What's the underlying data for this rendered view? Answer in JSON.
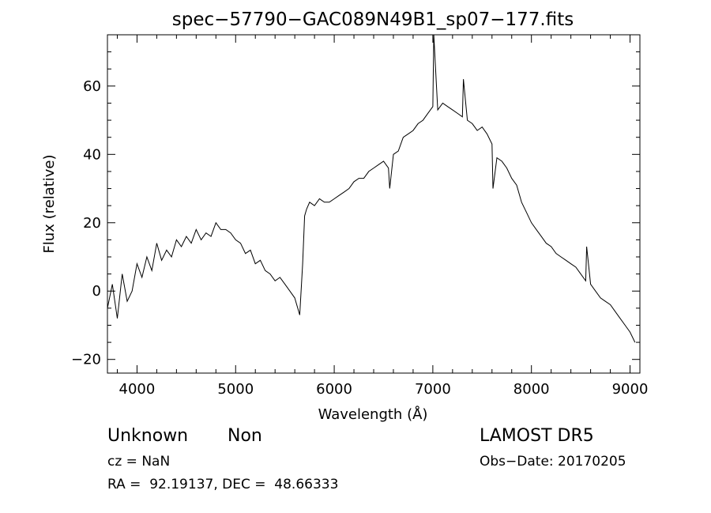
{
  "chart_data": {
    "type": "line",
    "title": "spec−57790−GAC089N49B1_sp07−177.fits",
    "xlabel": "Wavelength (Å)",
    "ylabel": "Flux (relative)",
    "xlim": [
      3700,
      9100
    ],
    "ylim": [
      -24,
      75
    ],
    "x_ticks": [
      4000,
      5000,
      6000,
      7000,
      8000,
      9000
    ],
    "x_tick_labels": [
      "4000",
      "5000",
      "6000",
      "7000",
      "8000",
      "9000"
    ],
    "y_ticks": [
      -20,
      0,
      20,
      40,
      60
    ],
    "y_tick_labels": [
      "−20",
      "0",
      "20",
      "40",
      "60"
    ],
    "grid": false,
    "series": [
      {
        "x": [
          3700,
          3750,
          3800,
          3850,
          3900,
          3950,
          4000,
          4050,
          4100,
          4150,
          4200,
          4250,
          4300,
          4350,
          4400,
          4450,
          4500,
          4550,
          4600,
          4650,
          4700,
          4750,
          4800,
          4850,
          4900,
          4950,
          5000,
          5050,
          5100,
          5150,
          5200,
          5250,
          5300,
          5350,
          5400,
          5450,
          5500,
          5550,
          5600,
          5650,
          5680,
          5700,
          5720,
          5750,
          5800,
          5850,
          5900,
          5950,
          6000,
          6050,
          6100,
          6150,
          6200,
          6250,
          6300,
          6350,
          6400,
          6450,
          6500,
          6550,
          6563,
          6600,
          6650,
          6700,
          6750,
          6800,
          6850,
          6900,
          6950,
          7000,
          7010,
          7050,
          7100,
          7150,
          7200,
          7250,
          7300,
          7310,
          7350,
          7400,
          7450,
          7500,
          7550,
          7600,
          7610,
          7650,
          7700,
          7750,
          7800,
          7850,
          7900,
          7950,
          8000,
          8050,
          8100,
          8150,
          8200,
          8250,
          8300,
          8350,
          8400,
          8450,
          8500,
          8550,
          8560,
          8600,
          8650,
          8700,
          8750,
          8800,
          8850,
          8900,
          8950,
          9000,
          9050
        ],
        "y": [
          -5,
          2,
          -8,
          5,
          -3,
          0,
          8,
          4,
          10,
          6,
          14,
          9,
          12,
          10,
          15,
          13,
          16,
          14,
          18,
          15,
          17,
          16,
          20,
          18,
          18,
          17,
          15,
          14,
          11,
          12,
          8,
          9,
          6,
          5,
          3,
          4,
          2,
          0,
          -2,
          -7,
          8,
          22,
          24,
          26,
          25,
          27,
          26,
          26,
          27,
          28,
          29,
          30,
          32,
          33,
          33,
          35,
          36,
          37,
          38,
          36,
          30,
          40,
          41,
          45,
          46,
          47,
          49,
          50,
          52,
          54,
          75,
          53,
          55,
          54,
          53,
          52,
          51,
          62,
          50,
          49,
          47,
          48,
          46,
          43,
          30,
          39,
          38,
          36,
          33,
          31,
          26,
          23,
          20,
          18,
          16,
          14,
          13,
          11,
          10,
          9,
          8,
          7,
          5,
          3,
          13,
          2,
          0,
          -2,
          -3,
          -4,
          -6,
          -8,
          -10,
          -12,
          -15
        ]
      }
    ],
    "annotations": {
      "object_class": "Unknown",
      "object_subclass": "Non",
      "survey": "LAMOST DR5",
      "redshift": "cz = NaN",
      "obs_date": "Obs−Date: 20170205",
      "coords": "RA =  92.19137, DEC =  48.66333"
    }
  }
}
